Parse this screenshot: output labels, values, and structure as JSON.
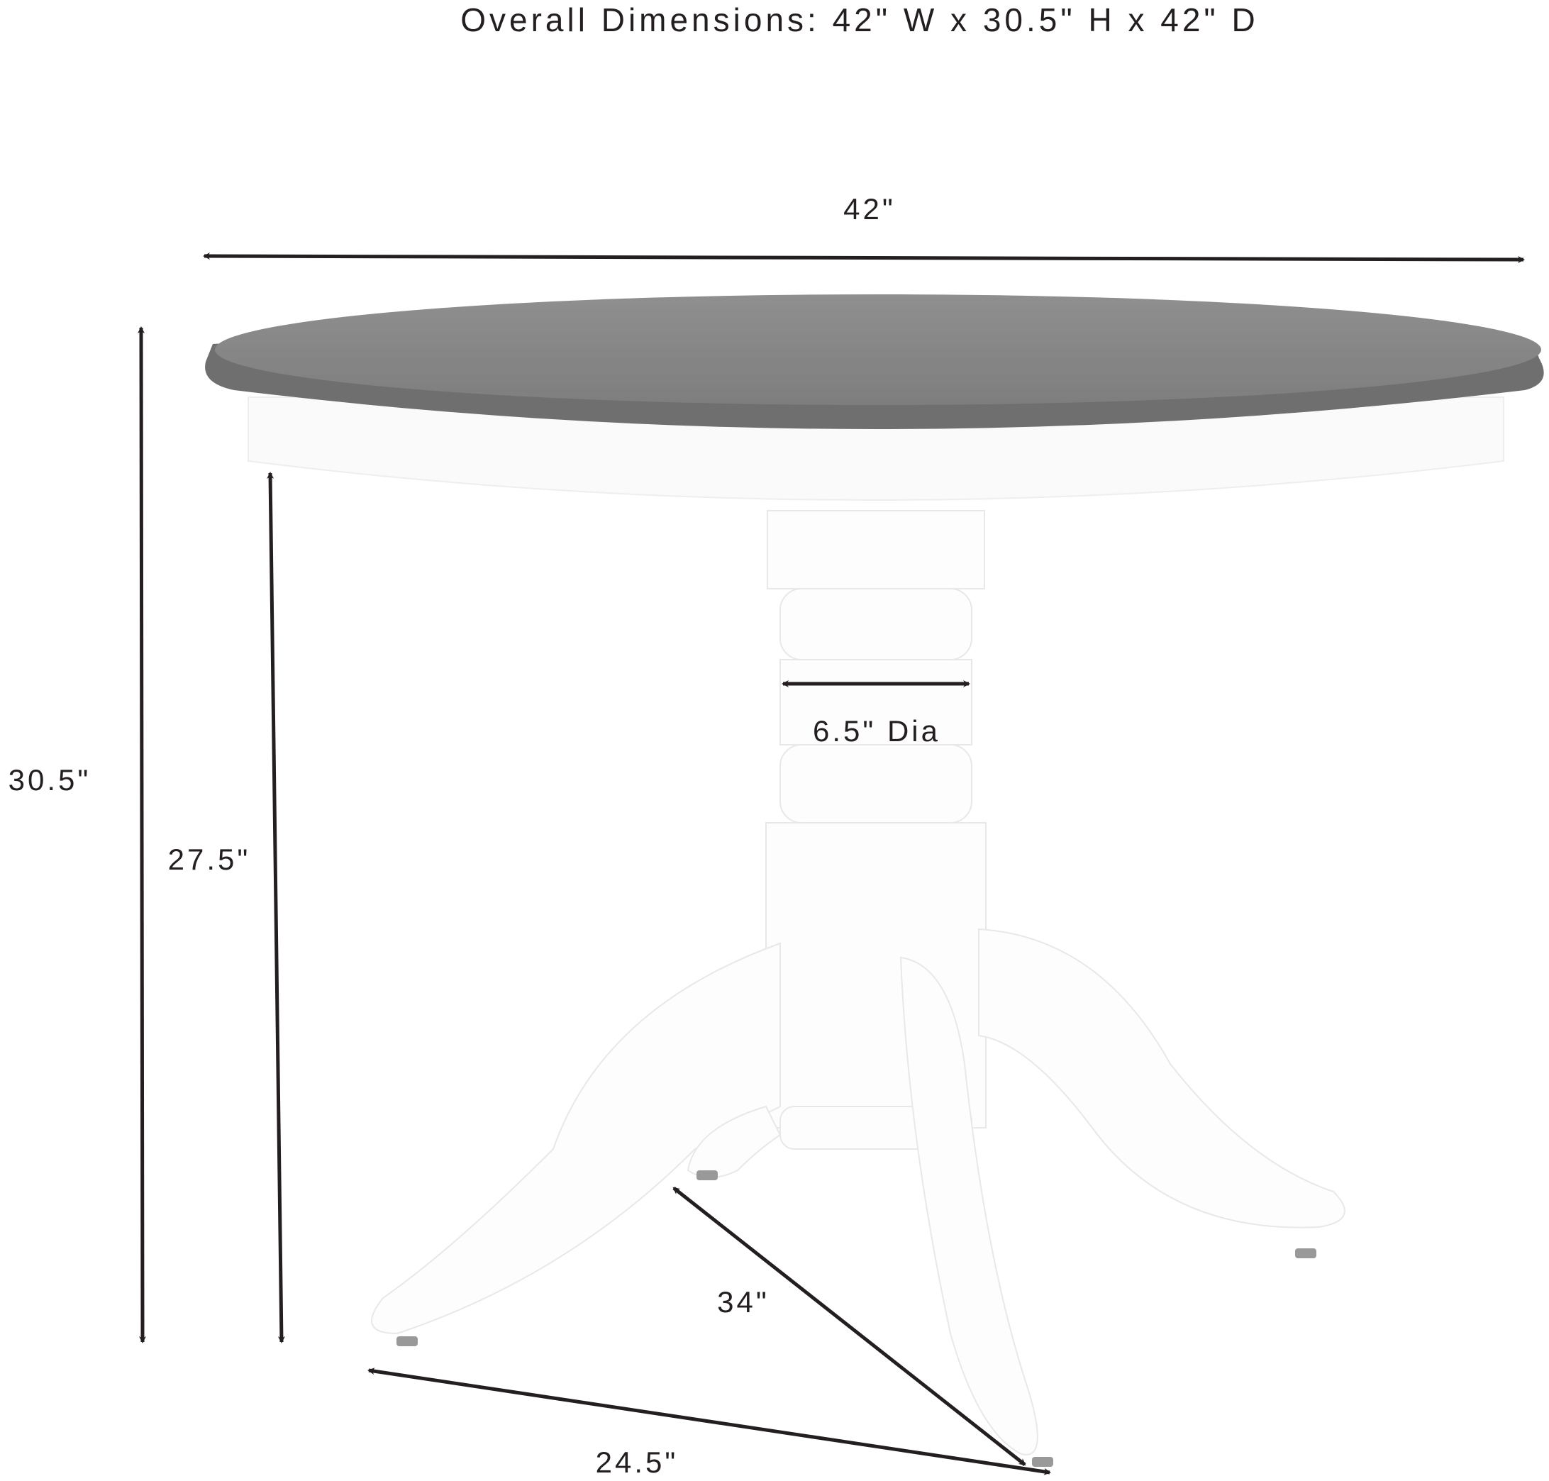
{
  "title": "Overall Dimensions: 42\" W x 30.5\" H x 42\" D",
  "dimensions": {
    "top_width": "42\"",
    "overall_height": "30.5\"",
    "apron_height": "27.5\"",
    "column_diameter": "6.5\" Dia",
    "base_diagonal": "34\"",
    "base_width": "24.5\""
  },
  "colors": {
    "tabletop": "#8a8a8a",
    "tabletop_edge": "#6f6f6f",
    "base": "#ffffff",
    "arrows": "#231f20"
  }
}
